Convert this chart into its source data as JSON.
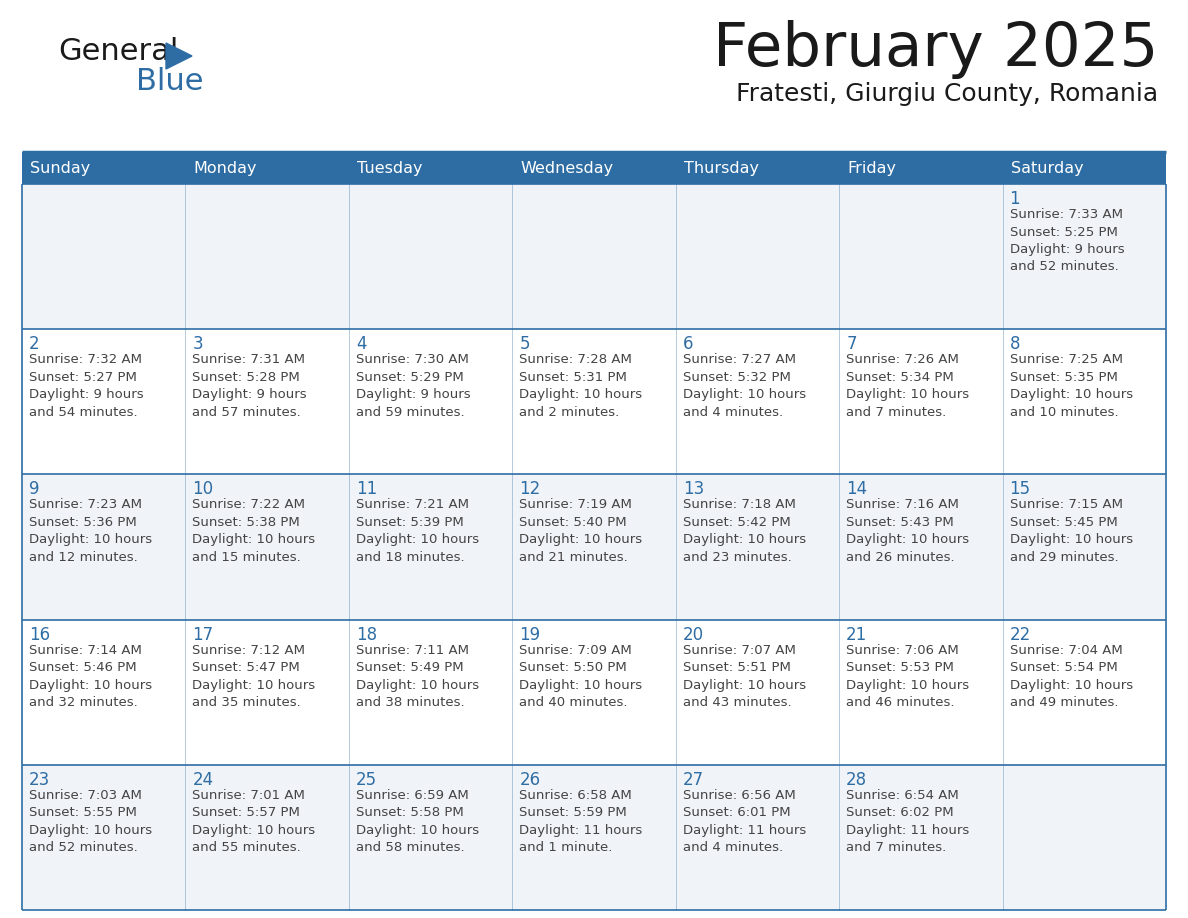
{
  "title": "February 2025",
  "subtitle": "Fratesti, Giurgiu County, Romania",
  "header_bg_color": "#2E6DA4",
  "header_text_color": "#FFFFFF",
  "border_color": "#2E6DA4",
  "day_names": [
    "Sunday",
    "Monday",
    "Tuesday",
    "Wednesday",
    "Thursday",
    "Friday",
    "Saturday"
  ],
  "title_color": "#1a1a1a",
  "subtitle_color": "#1a1a1a",
  "cell_text_color": "#444444",
  "day_num_color": "#2E6DA4",
  "cell_bg_even": "#F0F4F8",
  "cell_bg_odd": "#FFFFFF",
  "logo_general_color": "#1a1a1a",
  "logo_blue_color": "#2E6DA4",
  "logo_triangle_color": "#2E6DA4",
  "weeks": [
    [
      {
        "day": null,
        "info": null
      },
      {
        "day": null,
        "info": null
      },
      {
        "day": null,
        "info": null
      },
      {
        "day": null,
        "info": null
      },
      {
        "day": null,
        "info": null
      },
      {
        "day": null,
        "info": null
      },
      {
        "day": 1,
        "info": "Sunrise: 7:33 AM\nSunset: 5:25 PM\nDaylight: 9 hours\nand 52 minutes."
      }
    ],
    [
      {
        "day": 2,
        "info": "Sunrise: 7:32 AM\nSunset: 5:27 PM\nDaylight: 9 hours\nand 54 minutes."
      },
      {
        "day": 3,
        "info": "Sunrise: 7:31 AM\nSunset: 5:28 PM\nDaylight: 9 hours\nand 57 minutes."
      },
      {
        "day": 4,
        "info": "Sunrise: 7:30 AM\nSunset: 5:29 PM\nDaylight: 9 hours\nand 59 minutes."
      },
      {
        "day": 5,
        "info": "Sunrise: 7:28 AM\nSunset: 5:31 PM\nDaylight: 10 hours\nand 2 minutes."
      },
      {
        "day": 6,
        "info": "Sunrise: 7:27 AM\nSunset: 5:32 PM\nDaylight: 10 hours\nand 4 minutes."
      },
      {
        "day": 7,
        "info": "Sunrise: 7:26 AM\nSunset: 5:34 PM\nDaylight: 10 hours\nand 7 minutes."
      },
      {
        "day": 8,
        "info": "Sunrise: 7:25 AM\nSunset: 5:35 PM\nDaylight: 10 hours\nand 10 minutes."
      }
    ],
    [
      {
        "day": 9,
        "info": "Sunrise: 7:23 AM\nSunset: 5:36 PM\nDaylight: 10 hours\nand 12 minutes."
      },
      {
        "day": 10,
        "info": "Sunrise: 7:22 AM\nSunset: 5:38 PM\nDaylight: 10 hours\nand 15 minutes."
      },
      {
        "day": 11,
        "info": "Sunrise: 7:21 AM\nSunset: 5:39 PM\nDaylight: 10 hours\nand 18 minutes."
      },
      {
        "day": 12,
        "info": "Sunrise: 7:19 AM\nSunset: 5:40 PM\nDaylight: 10 hours\nand 21 minutes."
      },
      {
        "day": 13,
        "info": "Sunrise: 7:18 AM\nSunset: 5:42 PM\nDaylight: 10 hours\nand 23 minutes."
      },
      {
        "day": 14,
        "info": "Sunrise: 7:16 AM\nSunset: 5:43 PM\nDaylight: 10 hours\nand 26 minutes."
      },
      {
        "day": 15,
        "info": "Sunrise: 7:15 AM\nSunset: 5:45 PM\nDaylight: 10 hours\nand 29 minutes."
      }
    ],
    [
      {
        "day": 16,
        "info": "Sunrise: 7:14 AM\nSunset: 5:46 PM\nDaylight: 10 hours\nand 32 minutes."
      },
      {
        "day": 17,
        "info": "Sunrise: 7:12 AM\nSunset: 5:47 PM\nDaylight: 10 hours\nand 35 minutes."
      },
      {
        "day": 18,
        "info": "Sunrise: 7:11 AM\nSunset: 5:49 PM\nDaylight: 10 hours\nand 38 minutes."
      },
      {
        "day": 19,
        "info": "Sunrise: 7:09 AM\nSunset: 5:50 PM\nDaylight: 10 hours\nand 40 minutes."
      },
      {
        "day": 20,
        "info": "Sunrise: 7:07 AM\nSunset: 5:51 PM\nDaylight: 10 hours\nand 43 minutes."
      },
      {
        "day": 21,
        "info": "Sunrise: 7:06 AM\nSunset: 5:53 PM\nDaylight: 10 hours\nand 46 minutes."
      },
      {
        "day": 22,
        "info": "Sunrise: 7:04 AM\nSunset: 5:54 PM\nDaylight: 10 hours\nand 49 minutes."
      }
    ],
    [
      {
        "day": 23,
        "info": "Sunrise: 7:03 AM\nSunset: 5:55 PM\nDaylight: 10 hours\nand 52 minutes."
      },
      {
        "day": 24,
        "info": "Sunrise: 7:01 AM\nSunset: 5:57 PM\nDaylight: 10 hours\nand 55 minutes."
      },
      {
        "day": 25,
        "info": "Sunrise: 6:59 AM\nSunset: 5:58 PM\nDaylight: 10 hours\nand 58 minutes."
      },
      {
        "day": 26,
        "info": "Sunrise: 6:58 AM\nSunset: 5:59 PM\nDaylight: 11 hours\nand 1 minute."
      },
      {
        "day": 27,
        "info": "Sunrise: 6:56 AM\nSunset: 6:01 PM\nDaylight: 11 hours\nand 4 minutes."
      },
      {
        "day": 28,
        "info": "Sunrise: 6:54 AM\nSunset: 6:02 PM\nDaylight: 11 hours\nand 7 minutes."
      },
      {
        "day": null,
        "info": null
      }
    ]
  ]
}
